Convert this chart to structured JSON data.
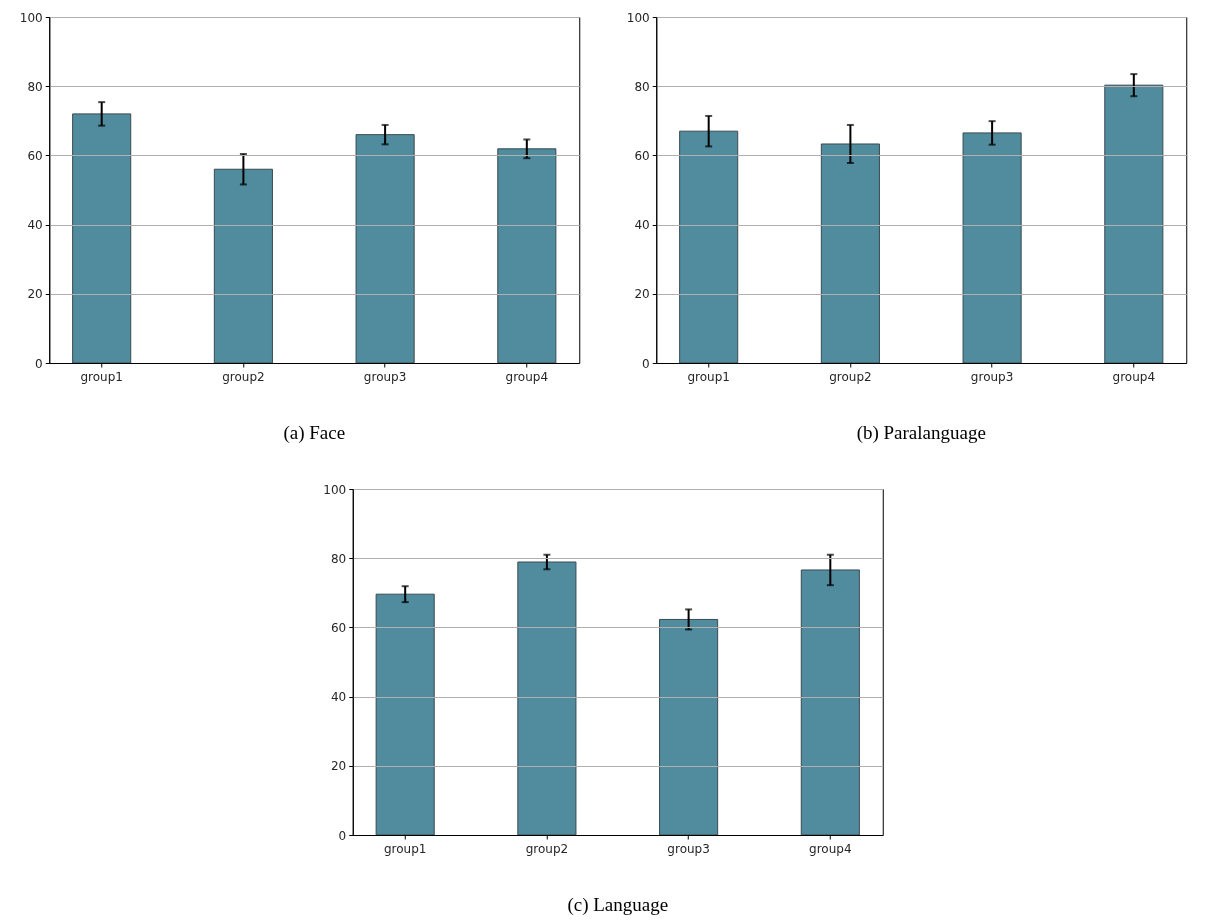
{
  "chart_data": [
    {
      "type": "bar",
      "title": "(a) Face",
      "categories": [
        "group1",
        "group2",
        "group3",
        "group4"
      ],
      "values": [
        72.0,
        56.0,
        66.0,
        61.9
      ],
      "errors": [
        3.4,
        4.4,
        2.8,
        2.7
      ],
      "color": "#508b9e",
      "ylim": [
        0,
        100
      ],
      "yticks": [
        0,
        20,
        40,
        60,
        80,
        100
      ],
      "grid": "y"
    },
    {
      "type": "bar",
      "title": "(b) Paralanguage",
      "categories": [
        "group1",
        "group2",
        "group3",
        "group4"
      ],
      "values": [
        67.0,
        63.3,
        66.5,
        80.3
      ],
      "errors": [
        4.4,
        5.5,
        3.4,
        3.2
      ],
      "color": "#508b9e",
      "ylim": [
        0,
        100
      ],
      "yticks": [
        0,
        20,
        40,
        60,
        80,
        100
      ],
      "grid": "y"
    },
    {
      "type": "bar",
      "title": "(c) Language",
      "categories": [
        "group1",
        "group2",
        "group3",
        "group4"
      ],
      "values": [
        69.6,
        78.9,
        62.3,
        76.6
      ],
      "errors": [
        2.3,
        2.1,
        2.9,
        4.4
      ],
      "color": "#508b9e",
      "ylim": [
        0,
        100
      ],
      "yticks": [
        0,
        20,
        40,
        60,
        80,
        100
      ],
      "grid": "y"
    }
  ]
}
